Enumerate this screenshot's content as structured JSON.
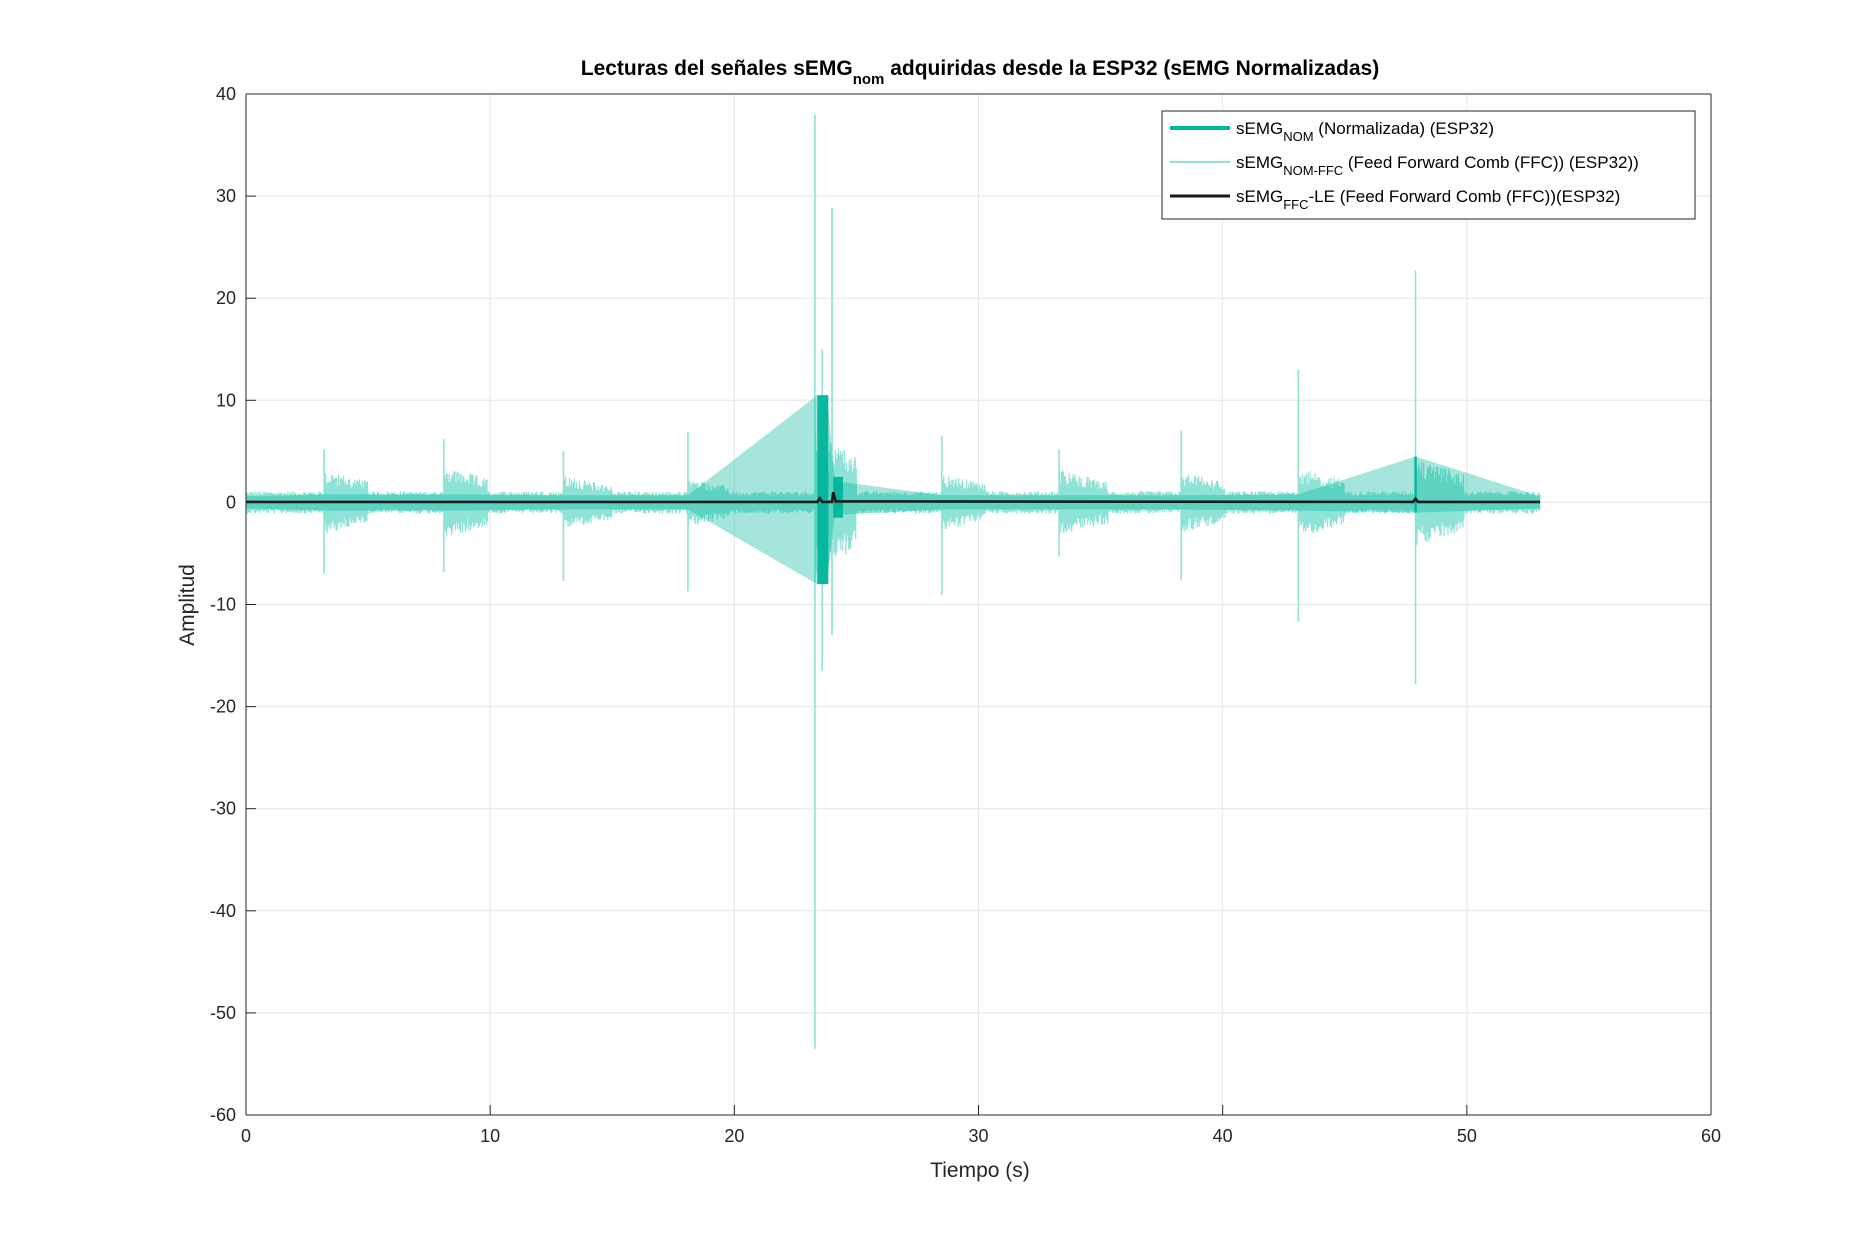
{
  "chart_data": {
    "type": "line",
    "title": {
      "prefix": "Lecturas del señales sEMG",
      "sub": "nom",
      "suffix": " adquiridas desde la ESP32 (sEMG Normalizadas)"
    },
    "xlabel": "Tiempo (s)",
    "ylabel": "Amplitud",
    "xlim": [
      0,
      60
    ],
    "ylim": [
      -60,
      40
    ],
    "xticks": [
      0,
      10,
      20,
      30,
      40,
      50,
      60
    ],
    "yticks": [
      40,
      30,
      20,
      10,
      0,
      -10,
      -20,
      -30,
      -40,
      -50,
      -60
    ],
    "grid": true,
    "legend_position": "top-right",
    "signal_range_seconds": [
      0,
      53
    ],
    "series": [
      {
        "legend_base": "sEMG",
        "legend_sub": "NOM",
        "legend_rest": " (Normalizada) (ESP32)",
        "color": "#00b59b",
        "style": "bold",
        "envelope_points": [
          [
            0,
            0.6,
            -0.6
          ],
          [
            3.2,
            0.8,
            -0.8
          ],
          [
            8.1,
            0.8,
            -0.8
          ],
          [
            13,
            0.7,
            -0.7
          ],
          [
            18.1,
            0.7,
            -0.7
          ],
          [
            23.4,
            10.5,
            -8.0
          ],
          [
            23.8,
            10.5,
            -8.0
          ],
          [
            24.1,
            2.5,
            -1.5
          ],
          [
            24.4,
            2.0,
            -1.2
          ],
          [
            28.5,
            0.7,
            -0.7
          ],
          [
            33.3,
            0.7,
            -0.7
          ],
          [
            38.3,
            0.7,
            -0.7
          ],
          [
            43.1,
            0.8,
            -0.8
          ],
          [
            47.9,
            4.5,
            -1.0
          ],
          [
            53,
            0.6,
            -0.6
          ]
        ]
      },
      {
        "legend_base": "sEMG",
        "legend_sub": "NOM-FFC",
        "legend_rest": "  (Feed Forward Comb (FFC)) (ESP32))",
        "color": "#8ee3d6",
        "style": "thin",
        "bursts": [
          {
            "start": 3.2,
            "end": 5.0,
            "amp": 3.2,
            "peak_max": 5.2,
            "peak_min": -7.0
          },
          {
            "start": 8.1,
            "end": 9.9,
            "amp": 3.6,
            "peak_max": 6.2,
            "peak_min": -6.8
          },
          {
            "start": 13.0,
            "end": 15.0,
            "amp": 2.6,
            "peak_max": 5.0,
            "peak_min": -7.7
          },
          {
            "start": 18.1,
            "end": 19.8,
            "amp": 2.4,
            "peak_max": 6.9,
            "peak_min": -8.7
          },
          {
            "start": 23.3,
            "end": 25.0,
            "amp": 7.0,
            "peak_max": 38.0,
            "peak_min": -53.5
          },
          {
            "start": 28.5,
            "end": 30.3,
            "amp": 2.8,
            "peak_max": 6.5,
            "peak_min": -9.1
          },
          {
            "start": 33.3,
            "end": 35.3,
            "amp": 3.2,
            "peak_max": 5.2,
            "peak_min": -5.3
          },
          {
            "start": 38.3,
            "end": 40.1,
            "amp": 3.0,
            "peak_max": 7.0,
            "peak_min": -7.6
          },
          {
            "start": 43.1,
            "end": 45.0,
            "amp": 3.4,
            "peak_max": 13.0,
            "peak_min": -11.7
          },
          {
            "start": 47.9,
            "end": 49.9,
            "amp": 4.3,
            "peak_max": 22.7,
            "peak_min": -17.8
          }
        ],
        "extra_spikes": [
          [
            24.0,
            28.9,
            -13.0
          ],
          [
            23.6,
            15.0,
            -16.5
          ]
        ],
        "baseline_amp": 1.1
      },
      {
        "legend_base": "sEMG",
        "legend_sub": "FFC",
        "legend_rest": "-LE (Feed Forward Comb (FFC))(ESP32)",
        "color": "#1a1a1a",
        "style": "medium",
        "points": [
          [
            0,
            0.05
          ],
          [
            23.4,
            0.05
          ],
          [
            23.5,
            0.4
          ],
          [
            23.6,
            0.05
          ],
          [
            24.0,
            0.05
          ],
          [
            24.05,
            1.0
          ],
          [
            24.15,
            0.1
          ],
          [
            47.8,
            0.05
          ],
          [
            47.9,
            0.35
          ],
          [
            48.0,
            0.05
          ],
          [
            53,
            0.05
          ]
        ]
      }
    ]
  }
}
